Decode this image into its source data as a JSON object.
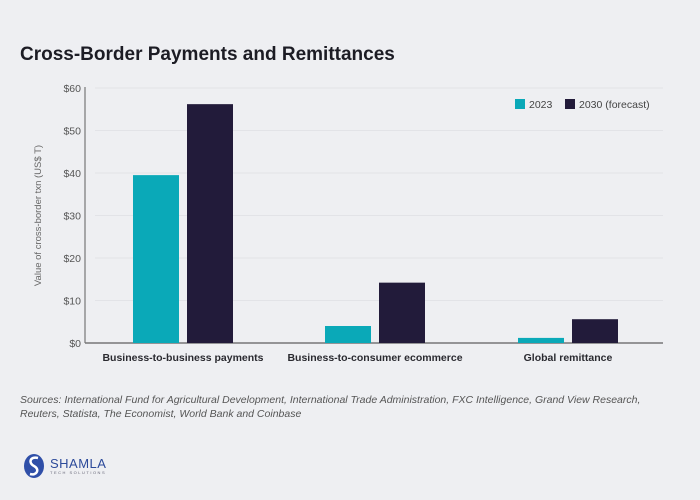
{
  "title": "Cross-Border Payments and Remittances",
  "chart_data": {
    "type": "bar",
    "title": "Cross-Border Payments and Remittances",
    "categories": [
      "Business-to-business payments",
      "Business-to-consumer ecommerce",
      "Global remittance"
    ],
    "series": [
      {
        "name": "2023",
        "color": "#0aa9b8",
        "values": [
          39.5,
          4.0,
          1.2
        ]
      },
      {
        "name": "2030 (forecast)",
        "color": "#221b3a",
        "values": [
          56.2,
          14.2,
          5.6
        ]
      }
    ],
    "xlabel": "",
    "ylabel": "Value of cross-border txn (US$ T)",
    "ylim": [
      0,
      60
    ],
    "yticks": [
      0,
      10,
      20,
      30,
      40,
      50,
      60
    ],
    "ytick_labels": [
      "$0",
      "$10",
      "$20",
      "$30",
      "$40",
      "$50",
      "$60"
    ],
    "grid": true,
    "legend": "top-right"
  },
  "sources": "Sources: International Fund for Agricultural Development, International Trade Administration, FXC Intelligence, Grand View Research, Reuters, Statista, The Economist, World Bank and Coinbase",
  "logo": {
    "name": "SHAMLA",
    "subtitle": "TECH SOLUTIONS"
  }
}
